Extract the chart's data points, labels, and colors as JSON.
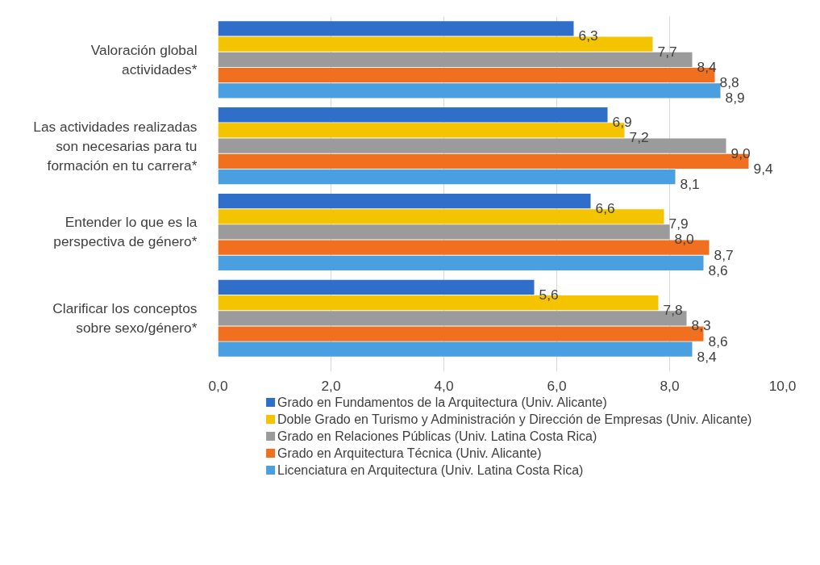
{
  "chart_data": {
    "type": "bar",
    "orientation": "horizontal",
    "categories": [
      "Valoración global actividades*",
      "Las actividades realizadas son necesarias para tu formación en tu carrera*",
      "Entender lo que es la perspectiva de género*",
      "Clarificar los conceptos sobre sexo/género*"
    ],
    "series": [
      {
        "name": "Grado en Fundamentos de la Arquitectura (Univ. Alicante)",
        "color": "#2f6ec9",
        "values": [
          6.3,
          6.9,
          6.6,
          5.6
        ],
        "value_labels": [
          "6,3",
          "6,9",
          "6,6",
          "5,6"
        ]
      },
      {
        "name": "Doble Grado en Turismo y Administración y Dirección de Empresas (Univ. Alicante)",
        "color": "#f5c400",
        "values": [
          7.7,
          7.2,
          7.9,
          7.8
        ],
        "value_labels": [
          "7,7",
          "7,2",
          "7,9",
          "7,8"
        ]
      },
      {
        "name": "Grado en Relaciones Públicas (Univ. Latina Costa Rica)",
        "color": "#9b9b9b",
        "values": [
          8.4,
          9.0,
          8.0,
          8.3
        ],
        "value_labels": [
          "8,4",
          "9,0",
          "8,0",
          "8,3"
        ]
      },
      {
        "name": "Grado en Arquitectura Técnica (Univ. Alicante)",
        "color": "#f07020",
        "values": [
          8.8,
          9.4,
          8.7,
          8.6
        ],
        "value_labels": [
          "8,8",
          "9,4",
          "8,7",
          "8,6"
        ]
      },
      {
        "name": "Licenciatura  en  Arquitectura  (Univ. Latina Costa Rica)",
        "color": "#4a9fe0",
        "values": [
          8.9,
          8.1,
          8.6,
          8.4
        ],
        "value_labels": [
          "8,9",
          "8,1",
          "8,6",
          "8,4"
        ]
      }
    ],
    "xlim": [
      0,
      10
    ],
    "xticks": [
      {
        "value": 0,
        "label": "0,0"
      },
      {
        "value": 2,
        "label": "2,0"
      },
      {
        "value": 4,
        "label": "4,0"
      },
      {
        "value": 6,
        "label": "6,0"
      },
      {
        "value": 8,
        "label": "8,0"
      },
      {
        "value": 10,
        "label": "10,0"
      }
    ],
    "grid": "x",
    "legend": "bottom"
  }
}
